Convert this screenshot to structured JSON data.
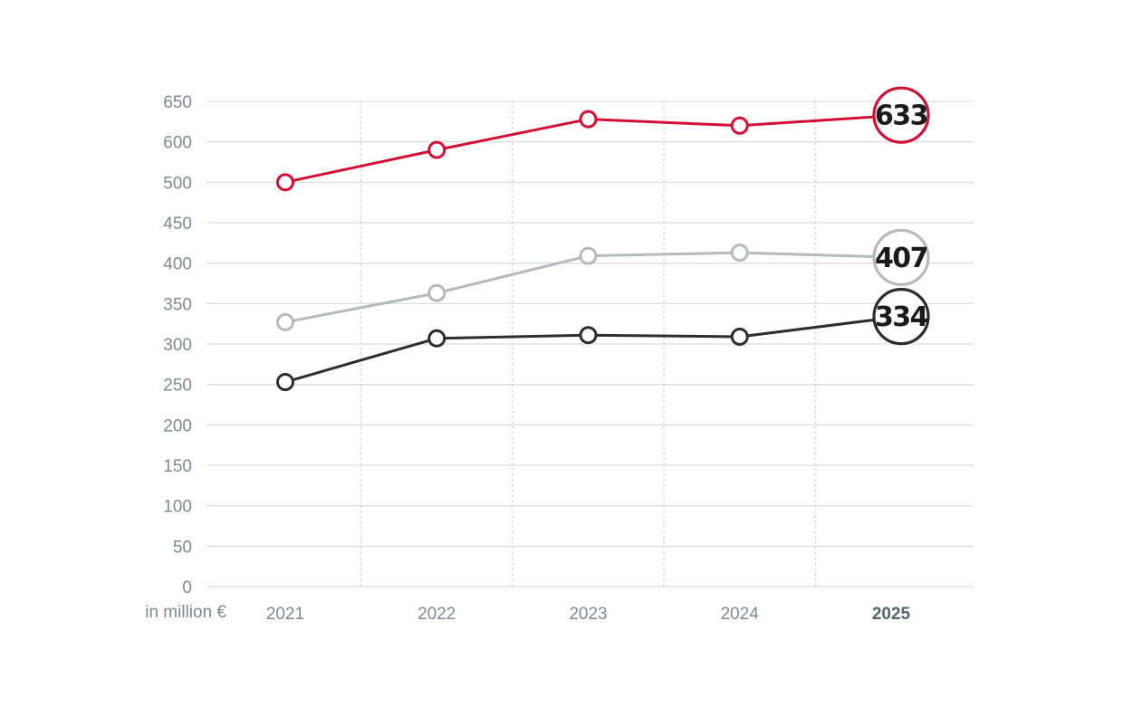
{
  "chart_data": {
    "type": "line",
    "unit_label": "in million €",
    "categories": [
      "2021",
      "2022",
      "2023",
      "2024",
      "2025"
    ],
    "x_highlight": "2025",
    "y_tick_labels": [
      "650",
      "600",
      "500",
      "450",
      "400",
      "350",
      "300",
      "250",
      "200",
      "150",
      "100",
      "50",
      "0"
    ],
    "y_tick_values": [
      650,
      600,
      500,
      450,
      400,
      350,
      300,
      250,
      200,
      150,
      100,
      50,
      0
    ],
    "ylim": [
      0,
      650
    ],
    "grid": true,
    "legend": "none",
    "series": [
      {
        "name": "red",
        "color": "#d30f33",
        "values": [
          500,
          580,
          628,
          620,
          633
        ],
        "end_label": "633"
      },
      {
        "name": "gray",
        "color": "#b5babd",
        "values": [
          327,
          363,
          409,
          413,
          407
        ],
        "end_label": "407"
      },
      {
        "name": "black",
        "color": "#2b2e30",
        "values": [
          253,
          307,
          311,
          309,
          334
        ],
        "end_label": "334"
      }
    ],
    "colors": {
      "background": "#ffffff",
      "grid": "#dbdee0",
      "grid_dotted": "#cdd2d6",
      "axis_label": "#7d8a93",
      "x_highlight_label": "#54646e",
      "end_label_text": "#1b1b1b"
    }
  }
}
